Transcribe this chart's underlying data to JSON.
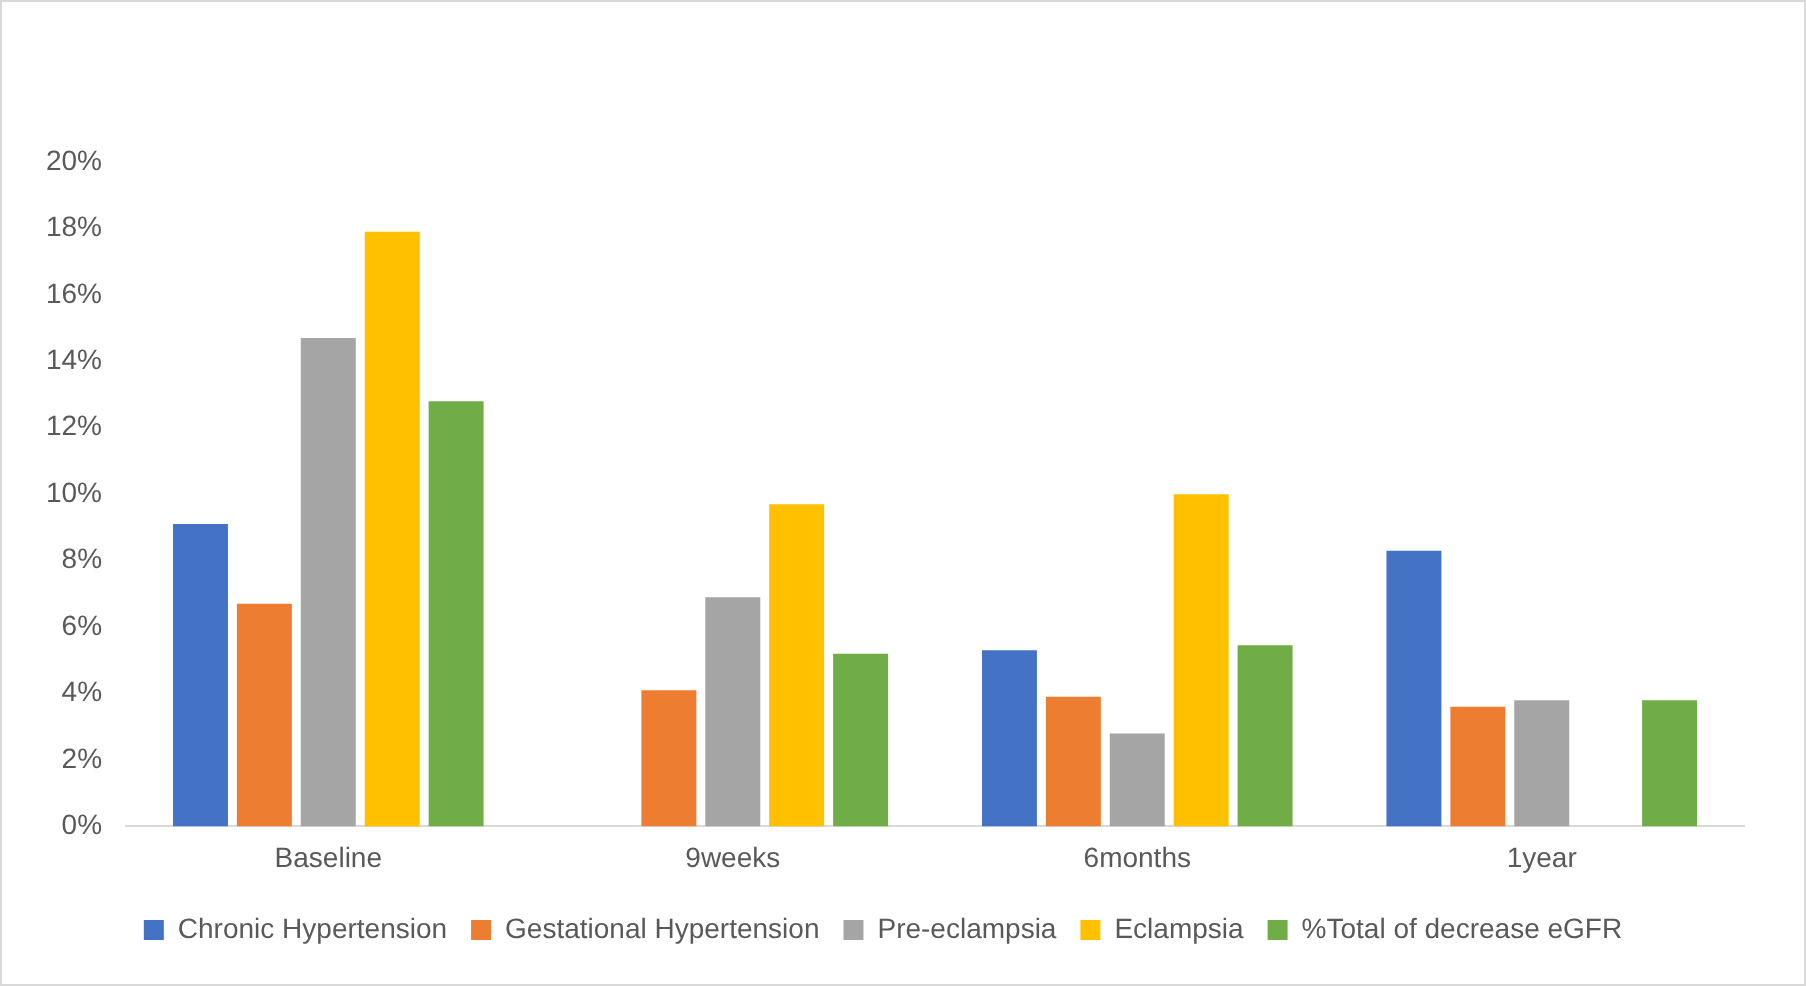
{
  "chart_data": {
    "type": "bar",
    "categories": [
      "Baseline",
      "9weeks",
      "6months",
      "1year"
    ],
    "series": [
      {
        "name": "Chronic Hypertension",
        "color": "#4472c4",
        "values": [
          9.1,
          null,
          5.3,
          8.3
        ]
      },
      {
        "name": "Gestational Hypertension",
        "color": "#ed7d31",
        "values": [
          6.7,
          4.1,
          3.9,
          3.6
        ]
      },
      {
        "name": "Pre-eclampsia",
        "color": "#a5a5a5",
        "values": [
          14.7,
          6.9,
          2.8,
          3.8
        ]
      },
      {
        "name": "Eclampsia",
        "color": "#ffc000",
        "values": [
          17.9,
          9.7,
          10.0,
          null
        ]
      },
      {
        "name": "%Total of decrease eGFR",
        "color": "#70ad47",
        "values": [
          12.8,
          5.2,
          5.45,
          3.8
        ]
      }
    ],
    "ylim": [
      0,
      20
    ],
    "yticks": [
      {
        "value": 0,
        "label": "0%"
      },
      {
        "value": 2,
        "label": "2%"
      },
      {
        "value": 4,
        "label": "4%"
      },
      {
        "value": 6,
        "label": "6%"
      },
      {
        "value": 8,
        "label": "8%"
      },
      {
        "value": 10,
        "label": "10%"
      },
      {
        "value": 12,
        "label": "12%"
      },
      {
        "value": 14,
        "label": "14%"
      },
      {
        "value": 16,
        "label": "16%"
      },
      {
        "value": 18,
        "label": "18%"
      },
      {
        "value": 20,
        "label": "20%"
      }
    ],
    "grid": false,
    "legend": "bottom"
  }
}
